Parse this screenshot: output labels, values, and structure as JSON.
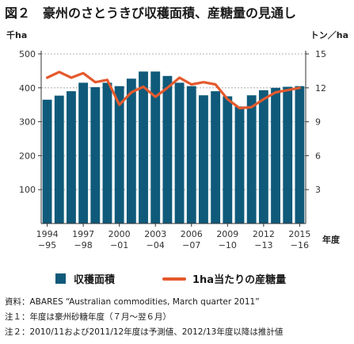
{
  "title": "図２　豪州のさとうきび収穫面積、産糖量の見通し",
  "legend": {
    "bar_label": "収穫面積",
    "line_label": "1ha当たりの産糖量"
  },
  "notes": [
    "資料：ABARES “Australian commodities, March quarter 2011”",
    "注１：年度は豪州砂糖年度（７月～翌６月）",
    "注２：2010/11および2011/12年度は予測値、2012/13年度以降は推計値"
  ],
  "colors": {
    "bar": "#0f5a7a",
    "line": "#e4592d",
    "grid": "#9a9a9a"
  },
  "chart_data": {
    "type": "bar",
    "left_unit": "千ha",
    "right_unit": "トン／ha",
    "xlabel": "年度",
    "ylim": [
      0,
      500
    ],
    "y2lim": [
      0,
      15
    ],
    "yticks": [
      100,
      200,
      300,
      400,
      500
    ],
    "y2ticks": [
      3,
      6,
      9,
      12,
      15
    ],
    "grid": true,
    "categories": [
      "1994/95",
      "1995/96",
      "1996/97",
      "1997/98",
      "1998/99",
      "1999/00",
      "2000/01",
      "2001/02",
      "2002/03",
      "2003/04",
      "2004/05",
      "2005/06",
      "2006/07",
      "2007/08",
      "2008/09",
      "2009/10",
      "2010/11",
      "2011/12",
      "2012/13",
      "2013/14",
      "2014/15",
      "2015/16"
    ],
    "tick_labels": [
      {
        "index": 0,
        "top": "1994",
        "bottom": "−95"
      },
      {
        "index": 3,
        "top": "1997",
        "bottom": "−98"
      },
      {
        "index": 6,
        "top": "2000",
        "bottom": "−01"
      },
      {
        "index": 9,
        "top": "2003",
        "bottom": "−04"
      },
      {
        "index": 12,
        "top": "2006",
        "bottom": "−07"
      },
      {
        "index": 15,
        "top": "2009",
        "bottom": "−10"
      },
      {
        "index": 18,
        "top": "2012",
        "bottom": "−13"
      },
      {
        "index": 21,
        "top": "2015",
        "bottom": "−16"
      }
    ],
    "series": [
      {
        "name": "収穫面積",
        "type": "bar",
        "axis": "left",
        "values": [
          365,
          377,
          390,
          415,
          402,
          415,
          405,
          427,
          448,
          448,
          435,
          415,
          405,
          378,
          390,
          375,
          345,
          378,
          393,
          400,
          403,
          405
        ]
      },
      {
        "name": "1ha当たりの産糖量",
        "type": "line",
        "axis": "right",
        "values": [
          12.9,
          13.4,
          12.9,
          13.3,
          12.5,
          12.7,
          10.5,
          11.6,
          12.1,
          11.2,
          12.0,
          12.9,
          12.3,
          12.5,
          12.3,
          11.0,
          10.2,
          10.3,
          11.0,
          11.6,
          11.8,
          12.0
        ]
      }
    ]
  }
}
